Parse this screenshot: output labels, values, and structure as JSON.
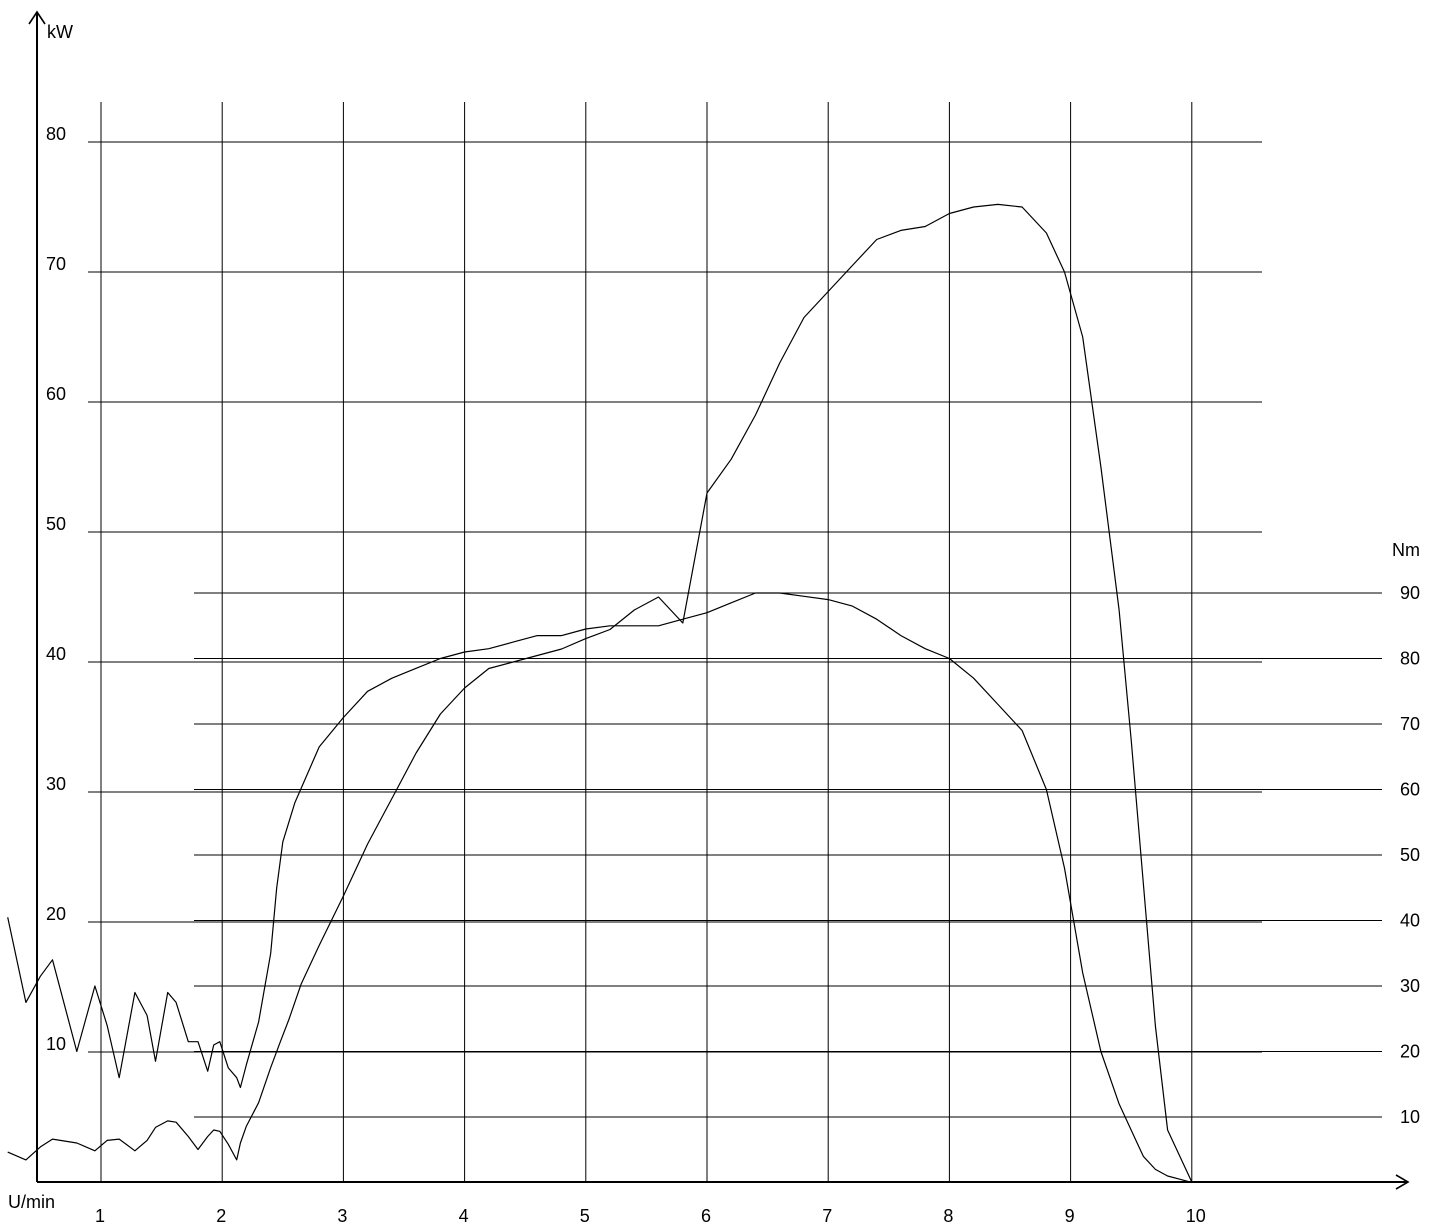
{
  "chart_data": {
    "type": "line",
    "xlabel": "U/min",
    "ylabel_left": "kW",
    "ylabel_right": "Nm",
    "x_ticks": [
      1,
      2,
      3,
      4,
      5,
      6,
      7,
      8,
      9,
      10
    ],
    "y_ticks_left": [
      10,
      20,
      30,
      40,
      50,
      60,
      70,
      80
    ],
    "y_ticks_right": [
      10,
      20,
      30,
      40,
      50,
      60,
      70,
      80,
      90
    ],
    "xlim": [
      0,
      11.75
    ],
    "ylim_left": [
      0,
      85
    ],
    "ylim_right": [
      0,
      90
    ],
    "grid": true,
    "series": [
      {
        "axis": "left",
        "x": [
          0.23,
          0.38,
          0.5,
          0.6,
          0.8,
          0.95,
          1.05,
          1.15,
          1.28,
          1.38,
          1.45,
          1.55,
          1.62,
          1.72,
          1.8,
          1.88,
          1.93,
          1.98,
          2.05,
          2.12,
          2.15,
          2.2,
          2.3,
          2.4,
          2.48,
          2.55,
          2.65,
          2.8,
          3.0,
          3.2,
          3.4,
          3.6,
          3.8,
          4.0,
          4.2,
          4.4,
          4.6,
          4.8,
          5.0,
          5.2,
          5.4,
          5.6,
          5.8,
          6.0,
          6.2,
          6.4,
          6.6,
          6.8,
          7.0,
          7.2,
          7.4,
          7.6,
          7.8,
          8.0,
          8.2,
          8.4,
          8.6,
          8.8,
          8.95,
          9.1,
          9.25,
          9.4,
          9.5,
          9.6,
          9.7,
          9.8,
          9.9,
          10.0
        ],
        "y": [
          2.3,
          1.7,
          2.7,
          3.3,
          3.0,
          2.4,
          3.2,
          3.3,
          2.4,
          3.2,
          4.2,
          4.7,
          4.6,
          3.5,
          2.5,
          3.5,
          4.0,
          3.9,
          2.9,
          1.7,
          3.0,
          4.3,
          6.1,
          8.8,
          10.8,
          12.5,
          15.2,
          18.2,
          22.0,
          26.0,
          29.5,
          33.0,
          36.0,
          38.0,
          39.5,
          40.0,
          40.5,
          41.0,
          41.8,
          42.5,
          44.0,
          45.0,
          43.0,
          53.0,
          55.6,
          59.0,
          63.0,
          66.5,
          68.5,
          70.5,
          72.5,
          73.2,
          73.5,
          74.5,
          75.0,
          75.2,
          75.0,
          73.0,
          70.0,
          65.0,
          55.0,
          44.0,
          34.0,
          23.0,
          12.0,
          4.0,
          2.0,
          0
        ]
      },
      {
        "axis": "right",
        "x": [
          0.23,
          0.38,
          0.5,
          0.6,
          0.8,
          0.95,
          1.05,
          1.15,
          1.28,
          1.38,
          1.45,
          1.55,
          1.62,
          1.72,
          1.8,
          1.88,
          1.93,
          1.98,
          2.05,
          2.12,
          2.15,
          2.2,
          2.3,
          2.4,
          2.45,
          2.5,
          2.6,
          2.8,
          3.0,
          3.2,
          3.4,
          3.6,
          3.8,
          4.0,
          4.2,
          4.4,
          4.6,
          4.8,
          5.0,
          5.2,
          5.4,
          5.6,
          5.8,
          6.0,
          6.2,
          6.4,
          6.6,
          6.8,
          7.0,
          7.2,
          7.4,
          7.6,
          7.8,
          8.0,
          8.2,
          8.4,
          8.6,
          8.8,
          8.95,
          9.1,
          9.25,
          9.4,
          9.5,
          9.6,
          9.7,
          9.8,
          9.9,
          10.0
        ],
        "y": [
          40.5,
          27.5,
          31.5,
          34.0,
          20.0,
          30.0,
          24.0,
          16.0,
          29.0,
          25.5,
          18.5,
          29.0,
          27.5,
          21.5,
          21.5,
          17.0,
          21.0,
          21.5,
          17.5,
          16.0,
          14.5,
          18.0,
          24.5,
          35.0,
          45.0,
          52.0,
          58.0,
          66.5,
          71.0,
          75.0,
          77.0,
          78.5,
          80.0,
          81.0,
          81.5,
          82.5,
          83.5,
          83.5,
          84.5,
          85.0,
          85.0,
          85.0,
          86.0,
          87.0,
          88.5,
          90.0,
          90.0,
          89.5,
          89.0,
          88.0,
          86.0,
          83.5,
          81.5,
          80.0,
          77.0,
          73.0,
          69.0,
          60.0,
          48.0,
          32.0,
          20.0,
          12.0,
          8.0,
          4.0,
          2.0,
          1.0,
          0.5,
          0
        ]
      }
    ]
  }
}
